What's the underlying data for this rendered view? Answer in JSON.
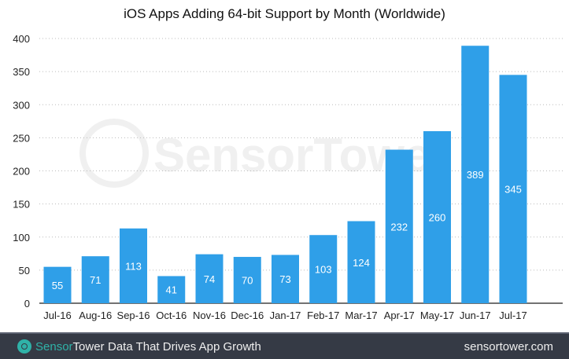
{
  "chart_data": {
    "type": "bar",
    "title": "iOS Apps Adding 64-bit Support by Month (Worldwide)",
    "categories": [
      "Jul-16",
      "Aug-16",
      "Sep-16",
      "Oct-16",
      "Nov-16",
      "Dec-16",
      "Jan-17",
      "Feb-17",
      "Mar-17",
      "Apr-17",
      "May-17",
      "Jun-17",
      "Jul-17"
    ],
    "values": [
      55,
      71,
      113,
      41,
      74,
      70,
      73,
      103,
      124,
      232,
      260,
      389,
      345
    ],
    "xlabel": "",
    "ylabel": "",
    "ylim": [
      0,
      400
    ],
    "yticks": [
      0,
      50,
      100,
      150,
      200,
      250,
      300,
      350,
      400
    ],
    "grid": true,
    "bar_color": "#2f9fe8"
  },
  "watermark": "SensorTower",
  "footer": {
    "brand_part1": "Sensor",
    "brand_part2": "Tower",
    "tagline": "Data That Drives App Growth",
    "website": "sensortower.com",
    "background": "#353a45",
    "brand_color": "#2fb2a8"
  }
}
